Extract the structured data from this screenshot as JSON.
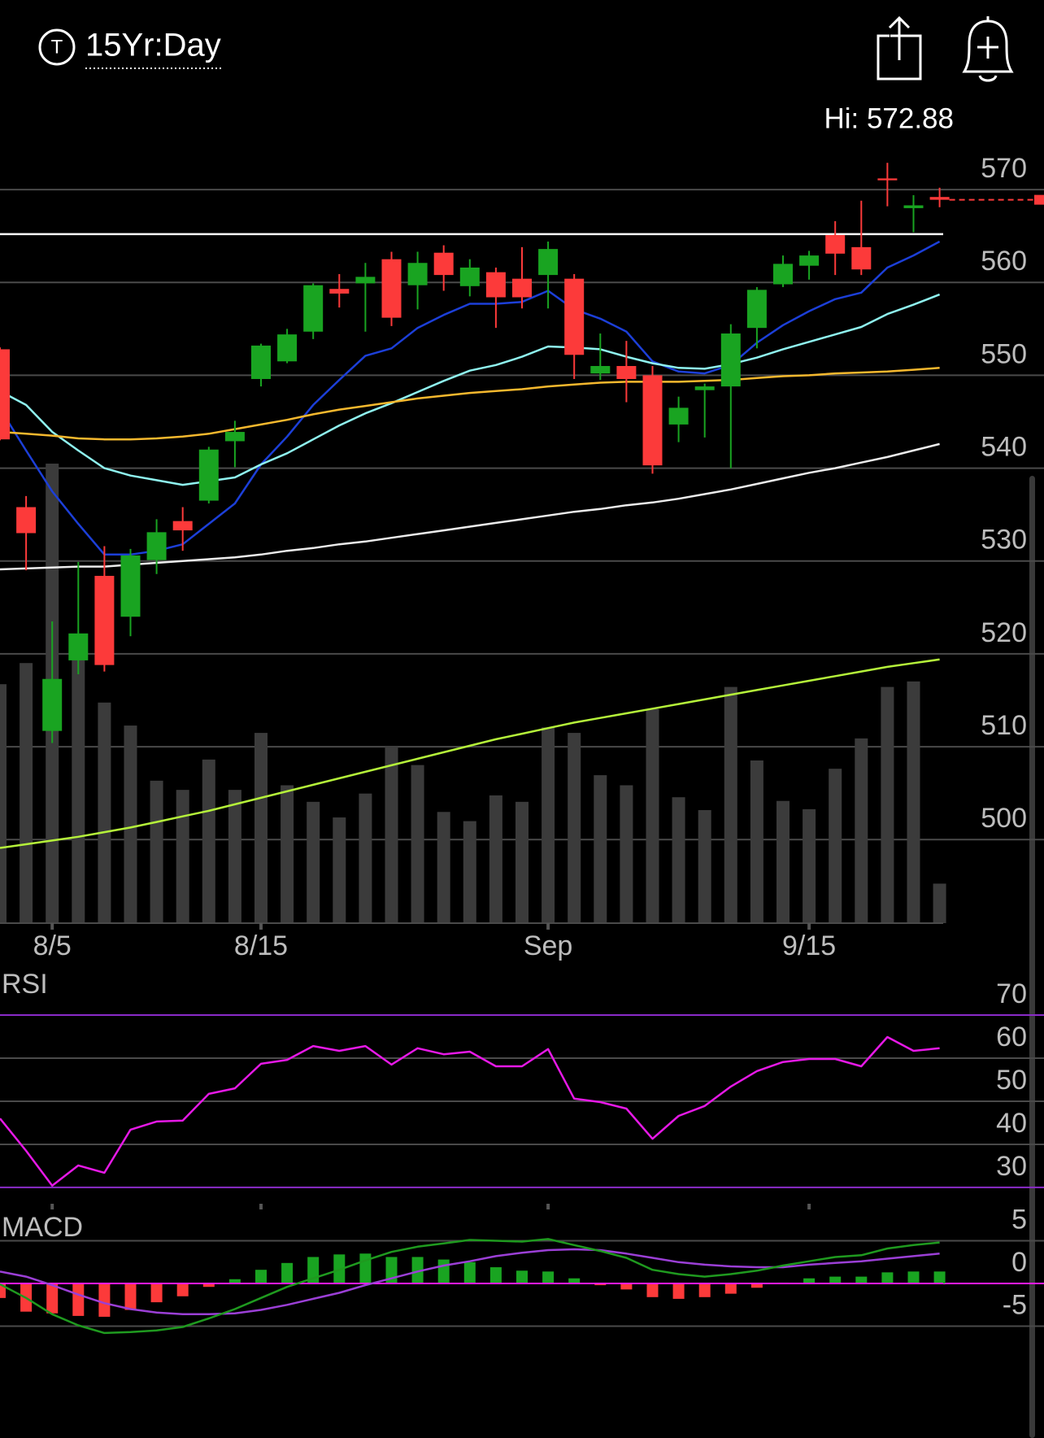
{
  "header": {
    "icon": "T",
    "title": "15Yr:Day"
  },
  "chart_data": [
    {
      "type": "candlestick",
      "annotation": "Hi: 572.88",
      "categories": [
        null,
        null,
        "8/5",
        null,
        null,
        null,
        null,
        null,
        null,
        null,
        "8/15",
        null,
        null,
        null,
        null,
        null,
        null,
        null,
        null,
        null,
        null,
        "Sep",
        null,
        null,
        null,
        null,
        null,
        null,
        null,
        null,
        null,
        "9/15",
        null,
        null,
        null,
        null,
        null
      ],
      "open": [
        552.8,
        535.8,
        511.7,
        519.3,
        528.4,
        524.0,
        530.1,
        534.3,
        536.5,
        542.9,
        549.6,
        551.5,
        554.7,
        559.3,
        559.9,
        562.5,
        559.7,
        563.2,
        559.6,
        561.1,
        560.4,
        560.8,
        560.4,
        550.2,
        551.0,
        550.0,
        544.7,
        548.4,
        548.8,
        555.1,
        559.8,
        561.8,
        565.1,
        563.8,
        571.2,
        568.0,
        569.2
      ],
      "high": [
        553.0,
        537.0,
        523.5,
        529.9,
        531.6,
        531.3,
        534.5,
        535.8,
        542.3,
        545.1,
        553.4,
        555.0,
        559.9,
        560.9,
        562.1,
        563.3,
        563.3,
        564.0,
        562.5,
        561.6,
        563.8,
        564.4,
        560.9,
        554.5,
        553.7,
        551.0,
        547.7,
        549.1,
        555.5,
        559.5,
        562.9,
        563.4,
        566.6,
        568.8,
        572.88,
        569.4,
        570.2
      ],
      "low": [
        543.0,
        529.0,
        510.4,
        517.8,
        518.1,
        521.9,
        528.6,
        531.1,
        536.2,
        540.1,
        548.8,
        551.3,
        553.9,
        557.3,
        554.7,
        555.3,
        557.1,
        559.1,
        558.5,
        555.1,
        557.2,
        557.2,
        549.6,
        549.5,
        547.1,
        539.4,
        542.8,
        543.3,
        540.0,
        552.9,
        559.5,
        560.3,
        560.8,
        560.8,
        568.2,
        565.4,
        568.1
      ],
      "close": [
        543.1,
        533.0,
        517.3,
        522.2,
        518.8,
        530.6,
        533.1,
        533.3,
        542.0,
        543.9,
        553.2,
        554.4,
        559.7,
        558.8,
        560.6,
        556.2,
        562.1,
        560.8,
        561.6,
        558.4,
        558.4,
        563.6,
        552.2,
        551.0,
        549.6,
        540.3,
        546.5,
        548.8,
        554.5,
        559.2,
        562.0,
        562.9,
        563.1,
        561.4,
        571.0,
        568.3,
        568.9
      ],
      "up_color": "#19a421",
      "down_color": "#fc3a3a",
      "ylim": [
        491,
        576.4
      ],
      "yticks": [
        500,
        510,
        520,
        530,
        540,
        550,
        560,
        570
      ],
      "grid": true,
      "level": 565.2,
      "level_color": "#ffffff",
      "moving_averages": [
        {
          "color": "#1c3fd8",
          "values": [
            546.4,
            541.9,
            537.5,
            534.0,
            530.7,
            530.7,
            531.1,
            531.8,
            534.0,
            536.2,
            540.4,
            543.4,
            546.8,
            549.5,
            552.1,
            552.9,
            555.1,
            556.5,
            557.7,
            557.7,
            557.9,
            559.1,
            557.1,
            556.1,
            554.7,
            551.5,
            550.4,
            550.2,
            551.1,
            553.5,
            555.4,
            556.9,
            558.2,
            558.9,
            561.6,
            562.9,
            564.4
          ]
        },
        {
          "color": "#8ff3f0",
          "values": [
            548.3,
            546.8,
            543.9,
            541.9,
            540.0,
            539.2,
            538.7,
            538.2,
            538.6,
            539.0,
            540.4,
            541.6,
            543.1,
            544.6,
            545.9,
            547.0,
            548.2,
            549.4,
            550.5,
            551.1,
            552.0,
            553.1,
            553.0,
            552.8,
            552.0,
            551.3,
            550.8,
            550.7,
            551.2,
            551.9,
            552.8,
            553.6,
            554.4,
            555.2,
            556.6,
            557.6,
            558.7
          ]
        },
        {
          "color": "#f5b82e",
          "values": [
            543.9,
            543.7,
            543.5,
            543.2,
            543.1,
            543.1,
            543.2,
            543.4,
            543.7,
            544.2,
            544.7,
            545.2,
            545.8,
            546.3,
            546.7,
            547.1,
            547.5,
            547.8,
            548.1,
            548.3,
            548.5,
            548.8,
            549.0,
            549.2,
            549.3,
            549.3,
            549.3,
            549.4,
            549.5,
            549.7,
            549.9,
            550.0,
            550.2,
            550.3,
            550.4,
            550.6,
            550.8
          ]
        },
        {
          "color": "#ececec",
          "values": [
            529.1,
            529.2,
            529.3,
            529.4,
            529.4,
            529.6,
            529.8,
            530.0,
            530.2,
            530.4,
            530.7,
            531.1,
            531.4,
            531.8,
            532.1,
            532.5,
            532.9,
            533.3,
            533.7,
            534.1,
            534.5,
            534.9,
            535.3,
            535.6,
            536.0,
            536.3,
            536.7,
            537.2,
            537.7,
            538.3,
            538.9,
            539.5,
            540.0,
            540.6,
            541.2,
            541.9,
            542.6
          ]
        },
        {
          "color": "#b5f23a",
          "values": [
            499.1,
            499.5,
            499.9,
            500.3,
            500.8,
            501.3,
            501.9,
            502.5,
            503.1,
            503.8,
            504.5,
            505.2,
            505.9,
            506.6,
            507.3,
            508.0,
            508.7,
            509.4,
            510.1,
            510.8,
            511.4,
            512.0,
            512.6,
            513.1,
            513.6,
            514.1,
            514.6,
            515.1,
            515.6,
            516.1,
            516.6,
            517.1,
            517.6,
            518.1,
            518.6,
            519.0,
            519.4
          ]
        }
      ],
      "volume": {
        "color": "#3b3b3b",
        "values": [
          52,
          56.6,
          100,
          58.6,
          48,
          43,
          31,
          29,
          35.6,
          29,
          41.4,
          30,
          26.4,
          23,
          28.2,
          38.4,
          34.4,
          24.2,
          22.2,
          27.8,
          26.4,
          42.6,
          41.4,
          32.2,
          30,
          46.6,
          27.4,
          24.6,
          51.4,
          35.4,
          26.6,
          24.8,
          33.6,
          40.2,
          51.4,
          52.6,
          8.6
        ]
      }
    },
    {
      "type": "line",
      "title": "RSI",
      "color": "#e619e6",
      "values": [
        46.0,
        38.5,
        30.4,
        35.1,
        33.4,
        43.4,
        45.3,
        45.5,
        51.7,
        53.0,
        58.7,
        59.6,
        62.8,
        61.7,
        62.8,
        58.5,
        62.3,
        60.9,
        61.5,
        58.1,
        58.1,
        62.1,
        50.6,
        49.8,
        48.3,
        41.3,
        46.6,
        48.9,
        53.4,
        57.0,
        59.1,
        59.8,
        59.8,
        58.1,
        64.9,
        61.7,
        62.3
      ],
      "ylim": [
        26.4,
        80
      ],
      "yticks": [
        30,
        40,
        50,
        60,
        70
      ],
      "grid": true,
      "levels": [
        30,
        70
      ],
      "level_color": "#8a2bc8"
    },
    {
      "type": "macd",
      "title": "MACD",
      "macd": {
        "color": "#1f9a1f",
        "values": [
          -0.1,
          -1.7,
          -3.6,
          -4.9,
          -5.8,
          -5.7,
          -5.5,
          -5.1,
          -4.1,
          -3.0,
          -1.7,
          -0.4,
          0.6,
          1.6,
          2.7,
          3.7,
          4.3,
          4.7,
          5.1,
          5.0,
          4.9,
          5.2,
          4.5,
          3.8,
          3.0,
          1.6,
          1.1,
          0.8,
          1.1,
          1.5,
          2.1,
          2.6,
          3.1,
          3.3,
          4.1,
          4.5,
          4.8
        ]
      },
      "signal": {
        "color": "#9b3fd6",
        "values": [
          1.4,
          0.8,
          -0.2,
          -1.3,
          -2.3,
          -3.0,
          -3.4,
          -3.6,
          -3.6,
          -3.5,
          -3.1,
          -2.5,
          -1.8,
          -1.1,
          -0.2,
          0.6,
          1.4,
          2.1,
          2.6,
          3.2,
          3.6,
          3.9,
          4.0,
          3.9,
          3.5,
          3.0,
          2.5,
          2.2,
          2.0,
          1.9,
          1.9,
          2.2,
          2.4,
          2.6,
          2.9,
          3.2,
          3.5
        ]
      },
      "histogram": [
        -1.7,
        -3.3,
        -3.5,
        -3.8,
        -3.9,
        -3.1,
        -2.2,
        -1.5,
        -0.4,
        0.5,
        1.6,
        2.4,
        3.1,
        3.4,
        3.5,
        3.1,
        3.1,
        2.8,
        2.5,
        1.9,
        1.5,
        1.4,
        0.6,
        -0.2,
        -0.7,
        -1.6,
        -1.8,
        -1.6,
        -1.2,
        -0.5,
        0.1,
        0.6,
        0.8,
        0.8,
        1.3,
        1.4,
        1.4
      ],
      "up_color": "#19a421",
      "down_color": "#fc3a3a",
      "ylim": [
        -18,
        8
      ],
      "yticks": [
        -5,
        0,
        5
      ],
      "grid": true,
      "zero_color": "#ff1aff"
    }
  ]
}
